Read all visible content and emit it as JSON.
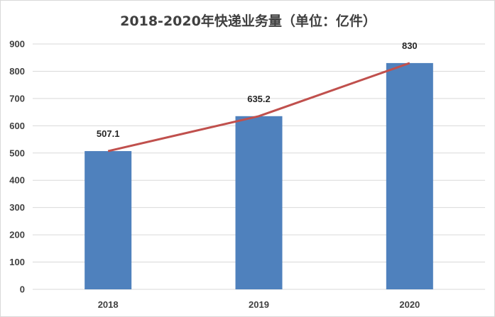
{
  "chart_data": {
    "type": "bar",
    "title": "2018-2020年快递业务量（单位：亿件）",
    "categories": [
      "2018",
      "2019",
      "2020"
    ],
    "values": [
      507.1,
      635.2,
      830
    ],
    "data_labels": [
      "507.1",
      "635.2",
      "830"
    ],
    "trend_line": true,
    "xlabel": "",
    "ylabel": "",
    "ylim": [
      0,
      900
    ],
    "yticks": [
      0,
      100,
      200,
      300,
      400,
      500,
      600,
      700,
      800,
      900
    ],
    "grid": true,
    "legend": "none",
    "colors": {
      "bar": "#4f81bd",
      "line": "#c0504d",
      "grid": "#d9d9d9"
    }
  }
}
